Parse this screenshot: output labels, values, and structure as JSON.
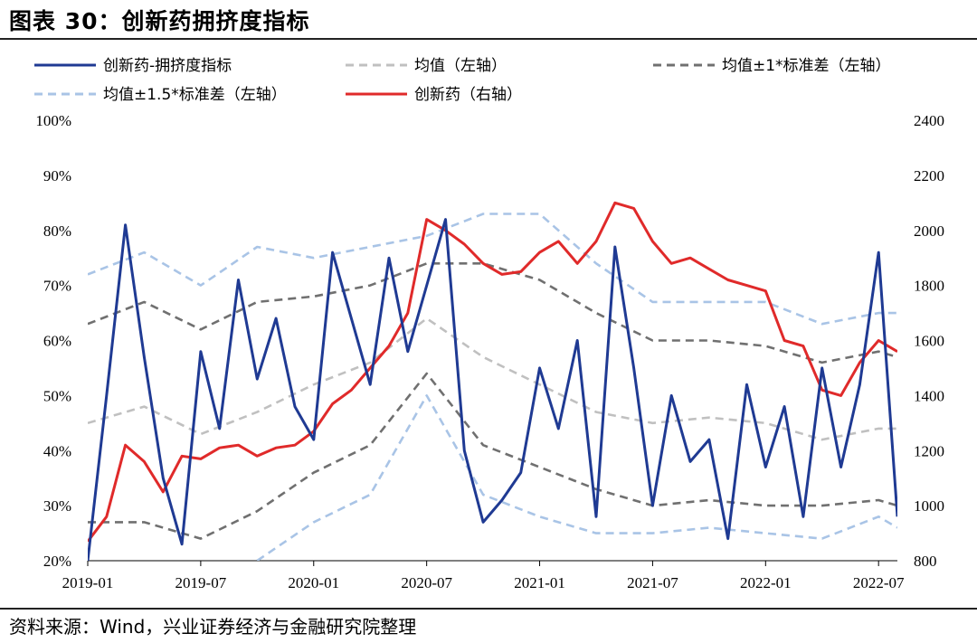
{
  "title": "图表 30：创新药拥挤度指标",
  "source": "资料来源：Wind，兴业证券经济与金融研究院整理",
  "chart_data": {
    "type": "line",
    "legend": [
      "创新药-拥挤度指标",
      "均值（左轴）",
      "均值±1*标准差（左轴）",
      "均值±1.5*标准差（左轴）",
      "创新药（右轴）"
    ],
    "x_ticks": [
      "2019-01",
      "2019-07",
      "2020-01",
      "2020-07",
      "2021-01",
      "2021-07",
      "2022-01",
      "2022-07"
    ],
    "y_left": {
      "ticks": [
        "20%",
        "30%",
        "40%",
        "50%",
        "60%",
        "70%",
        "80%",
        "90%",
        "100%"
      ],
      "range": [
        20,
        100
      ],
      "unit": "%"
    },
    "y_right": {
      "ticks": [
        "800",
        "1000",
        "1200",
        "1400",
        "1600",
        "1800",
        "2000",
        "2200",
        "2400"
      ],
      "range": [
        800,
        2400
      ]
    },
    "colors": {
      "crowding": "#1f3a93",
      "mean": "#c0c0c0",
      "sd1": "#707070",
      "sd15": "#a9c4e6",
      "innovation": "#e02a2a"
    },
    "x_range": [
      "2019-01",
      "2022-08"
    ],
    "series": [
      {
        "name": "创新药-拥挤度指标",
        "axis": "left",
        "style": "solid",
        "x": [
          "2019-01",
          "2019-02",
          "2019-03",
          "2019-04",
          "2019-05",
          "2019-06",
          "2019-07",
          "2019-08",
          "2019-09",
          "2019-10",
          "2019-11",
          "2019-12",
          "2020-01",
          "2020-02",
          "2020-03",
          "2020-04",
          "2020-05",
          "2020-06",
          "2020-07",
          "2020-08",
          "2020-09",
          "2020-10",
          "2020-11",
          "2020-12",
          "2021-01",
          "2021-02",
          "2021-03",
          "2021-04",
          "2021-05",
          "2021-06",
          "2021-07",
          "2021-08",
          "2021-09",
          "2021-10",
          "2021-11",
          "2021-12",
          "2022-01",
          "2022-02",
          "2022-03",
          "2022-04",
          "2022-05",
          "2022-06",
          "2022-07",
          "2022-08"
        ],
        "values": [
          20,
          50,
          81,
          57,
          35,
          23,
          58,
          44,
          71,
          53,
          64,
          48,
          42,
          76,
          64,
          52,
          75,
          58,
          70,
          82,
          40,
          27,
          31,
          36,
          55,
          44,
          60,
          28,
          77,
          55,
          30,
          50,
          38,
          42,
          24,
          52,
          37,
          48,
          28,
          55,
          37,
          52,
          76,
          28
        ]
      },
      {
        "name": "均值（左轴）",
        "axis": "left",
        "style": "dashed",
        "x": [
          "2019-01",
          "2019-04",
          "2019-07",
          "2019-10",
          "2020-01",
          "2020-04",
          "2020-07",
          "2020-10",
          "2021-01",
          "2021-04",
          "2021-07",
          "2021-10",
          "2022-01",
          "2022-04",
          "2022-07",
          "2022-08"
        ],
        "values": [
          45,
          48,
          43,
          47,
          52,
          56,
          64,
          57,
          52,
          47,
          45,
          46,
          45,
          42,
          44,
          44
        ]
      },
      {
        "name": "均值±1*标准差（左轴）",
        "axis": "left",
        "style": "dashed",
        "x": [
          "2019-01",
          "2019-04",
          "2019-07",
          "2019-10",
          "2020-01",
          "2020-04",
          "2020-07",
          "2020-10",
          "2021-01",
          "2021-04",
          "2021-07",
          "2021-10",
          "2022-01",
          "2022-04",
          "2022-07",
          "2022-08"
        ],
        "values": [
          63,
          67,
          62,
          67,
          68,
          70,
          74,
          74,
          71,
          65,
          60,
          60,
          59,
          56,
          58,
          57
        ]
      },
      {
        "name": "均值±1*标准差（左轴）",
        "axis": "left",
        "style": "dashed",
        "x": [
          "2019-01",
          "2019-04",
          "2019-07",
          "2019-10",
          "2020-01",
          "2020-04",
          "2020-07",
          "2020-10",
          "2021-01",
          "2021-04",
          "2021-07",
          "2021-10",
          "2022-01",
          "2022-04",
          "2022-07",
          "2022-08"
        ],
        "values": [
          27,
          27,
          24,
          29,
          36,
          41,
          54,
          41,
          37,
          33,
          30,
          31,
          30,
          30,
          31,
          30
        ]
      },
      {
        "name": "均值±1.5*标准差（左轴）",
        "axis": "left",
        "style": "dashed",
        "x": [
          "2019-01",
          "2019-04",
          "2019-07",
          "2019-10",
          "2020-01",
          "2020-04",
          "2020-07",
          "2020-10",
          "2021-01",
          "2021-04",
          "2021-07",
          "2021-10",
          "2022-01",
          "2022-04",
          "2022-07",
          "2022-08"
        ],
        "values": [
          72,
          76,
          70,
          77,
          75,
          77,
          79,
          83,
          83,
          74,
          67,
          67,
          67,
          63,
          65,
          65
        ]
      },
      {
        "name": "均值±1.5*标准差（左轴）",
        "axis": "left",
        "style": "dashed",
        "x": [
          "2019-10",
          "2020-01",
          "2020-04",
          "2020-07",
          "2020-10",
          "2021-01",
          "2021-04",
          "2021-07",
          "2021-10",
          "2022-01",
          "2022-04",
          "2022-07",
          "2022-08"
        ],
        "values": [
          20,
          27,
          32,
          50,
          32,
          28,
          25,
          25,
          26,
          25,
          24,
          28,
          26
        ]
      },
      {
        "name": "创新药（右轴）",
        "axis": "right",
        "style": "solid",
        "x": [
          "2019-01",
          "2019-02",
          "2019-03",
          "2019-04",
          "2019-05",
          "2019-06",
          "2019-07",
          "2019-08",
          "2019-09",
          "2019-10",
          "2019-11",
          "2019-12",
          "2020-01",
          "2020-02",
          "2020-03",
          "2020-04",
          "2020-05",
          "2020-06",
          "2020-07",
          "2020-08",
          "2020-09",
          "2020-10",
          "2020-11",
          "2020-12",
          "2021-01",
          "2021-02",
          "2021-03",
          "2021-04",
          "2021-05",
          "2021-06",
          "2021-07",
          "2021-08",
          "2021-09",
          "2021-10",
          "2021-11",
          "2021-12",
          "2022-01",
          "2022-02",
          "2022-03",
          "2022-04",
          "2022-05",
          "2022-06",
          "2022-07",
          "2022-08"
        ],
        "values": [
          870,
          960,
          1220,
          1160,
          1050,
          1180,
          1170,
          1210,
          1220,
          1180,
          1210,
          1220,
          1270,
          1370,
          1420,
          1500,
          1580,
          1700,
          2040,
          2000,
          1950,
          1880,
          1840,
          1850,
          1920,
          1960,
          1880,
          1960,
          2100,
          2080,
          1960,
          1880,
          1900,
          1860,
          1820,
          1800,
          1780,
          1600,
          1580,
          1420,
          1400,
          1520,
          1600,
          1560
        ]
      }
    ]
  }
}
